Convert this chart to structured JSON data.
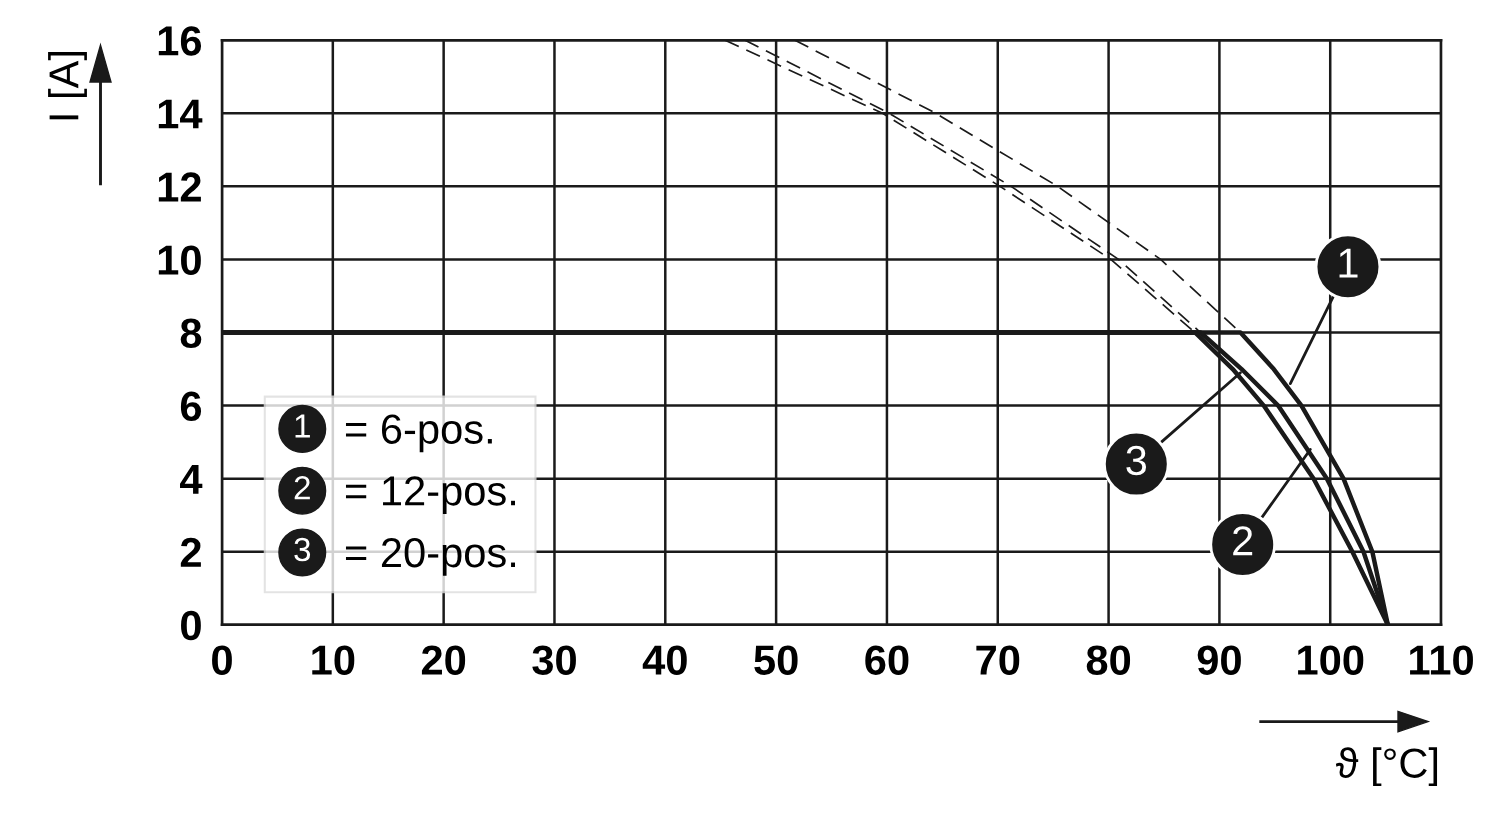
{
  "chart_data": {
    "type": "line",
    "xlabel": "ϑ [°C]",
    "ylabel": "I [A]",
    "xlim": [
      0,
      110
    ],
    "ylim": [
      0,
      16
    ],
    "xticks": [
      0,
      10,
      20,
      30,
      40,
      50,
      60,
      70,
      80,
      90,
      100,
      110
    ],
    "yticks": [
      0,
      2,
      4,
      6,
      8,
      10,
      12,
      14,
      16
    ],
    "grid": true,
    "legend": "bottom left",
    "marker": "none",
    "series": [
      {
        "name": "= 6-pos.",
        "color": "#1a1a1a",
        "line_style": "solid",
        "x": [
          0,
          91.9,
          94.9,
          97.4,
          101.2,
          103.8,
          105.2
        ],
        "values": [
          8,
          8,
          7,
          6,
          4,
          2,
          0
        ]
      },
      {
        "name": "= 12-pos.",
        "color": "#1a1a1a",
        "line_style": "solid",
        "x": [
          0,
          88.3,
          92,
          95.3,
          99.7,
          103,
          105.2
        ],
        "values": [
          8,
          8,
          7,
          6,
          4,
          2,
          0
        ]
      },
      {
        "name": "= 20-pos.",
        "color": "#1a1a1a",
        "line_style": "solid",
        "x": [
          0,
          87.8,
          91.2,
          94,
          98.5,
          102,
          105.2
        ],
        "values": [
          8,
          8,
          7,
          6,
          4,
          2,
          0
        ]
      },
      {
        "color": "#1a1a1a",
        "line_style": "dashed",
        "x": [
          51.7,
          64.4,
          75.4,
          84.7,
          91.9
        ],
        "values": [
          16,
          14,
          12,
          10,
          8
        ]
      },
      {
        "color": "#1a1a1a",
        "line_style": "dashed",
        "x": [
          47.2,
          60.2,
          71.2,
          80.9,
          88.3
        ],
        "values": [
          16,
          14,
          12,
          10,
          8
        ]
      },
      {
        "color": "#1a1a1a",
        "line_style": "dashed",
        "x": [
          45.4,
          59.6,
          70.2,
          80.2,
          87.8
        ],
        "values": [
          16,
          14,
          12,
          10,
          8
        ]
      }
    ],
    "annotations": [
      {
        "text": "1",
        "x": 96.4,
        "y": 6.6
      },
      {
        "text": "2",
        "x": 98.2,
        "y": 4.8
      },
      {
        "text": "3",
        "x": 91.9,
        "y": 6.9
      }
    ]
  }
}
